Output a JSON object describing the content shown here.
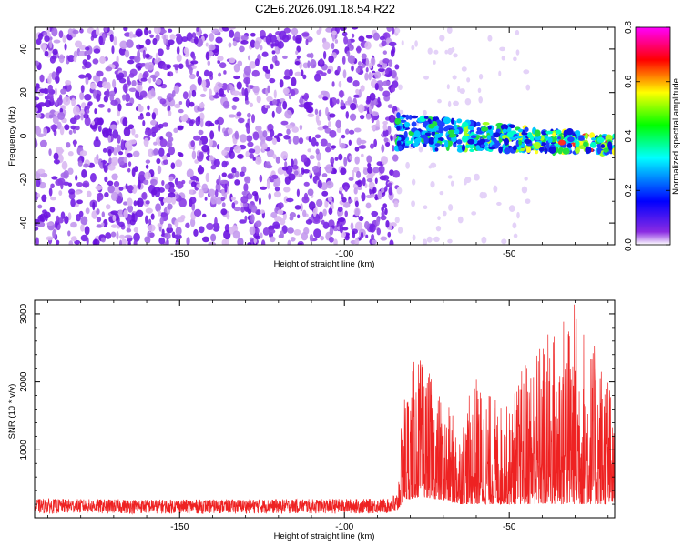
{
  "figure_title": "C2E6.2026.091.18.54.R22",
  "chart_data": [
    {
      "type": "heatmap",
      "title": "C2E6.2026.091.18.54.R22",
      "xlabel": "Height of straight line (km)",
      "ylabel": "Frequency (Hz)",
      "xlim": [
        -194,
        -18
      ],
      "ylim": [
        -50,
        50
      ],
      "x_ticks": [
        -150,
        -100,
        -50
      ],
      "y_ticks": [
        -40,
        -20,
        0,
        20,
        40
      ],
      "x_tick_labels": [
        "-150",
        "-100",
        "-50"
      ],
      "y_tick_labels": [
        "-40",
        "-20",
        "0",
        "20",
        "40"
      ],
      "noise_region_x": [
        -194,
        -84
      ],
      "signal_region_x": [
        -84,
        -18
      ],
      "signal_center_line": {
        "x": [
          -84,
          -18
        ],
        "freq": [
          2,
          -4
        ]
      },
      "signal_halfwidth_hz": {
        "start": 8,
        "end": 4
      },
      "colorbar": {
        "label": "Normalized spectral amplitude",
        "range": [
          0.0,
          0.8
        ],
        "ticks": [
          0.0,
          0.2,
          0.4,
          0.6,
          0.8
        ],
        "tick_labels": [
          "0.0",
          "0.2",
          "0.4",
          "0.6",
          "0.8"
        ],
        "colors": [
          "#ffffff",
          "#8a2be2",
          "#0000ff",
          "#00ffff",
          "#00ff00",
          "#ffff00",
          "#ff0000",
          "#ff00ff"
        ]
      }
    },
    {
      "type": "line",
      "xlabel": "Height of straight line (km)",
      "ylabel": "SNR (10 * v/v)",
      "xlim": [
        -194,
        -18
      ],
      "ylim": [
        0,
        3200
      ],
      "x_ticks": [
        -150,
        -100,
        -50
      ],
      "y_ticks": [
        1000,
        2000,
        3000
      ],
      "x_tick_labels": [
        "-150",
        "-100",
        "-50"
      ],
      "y_tick_labels": [
        "1000",
        "2000",
        "3000"
      ],
      "series": [
        {
          "name": "SNR",
          "color": "#ee2222",
          "envelope_x": [
            -194,
            -150,
            -100,
            -86,
            -84,
            -82,
            -78,
            -75,
            -70,
            -65,
            -60,
            -55,
            -50,
            -45,
            -40,
            -35,
            -30,
            -25,
            -20,
            -18
          ],
          "envelope_max": [
            280,
            270,
            280,
            280,
            420,
            1900,
            2450,
            2200,
            1750,
            1400,
            2100,
            1800,
            1650,
            2400,
            2700,
            3000,
            3230,
            2600,
            2300,
            1200
          ],
          "baseline": [
            60,
            60,
            60,
            60,
            100,
            250,
            300,
            300,
            250,
            200,
            200,
            200,
            200,
            200,
            200,
            200,
            200,
            200,
            200,
            200
          ]
        }
      ]
    }
  ]
}
